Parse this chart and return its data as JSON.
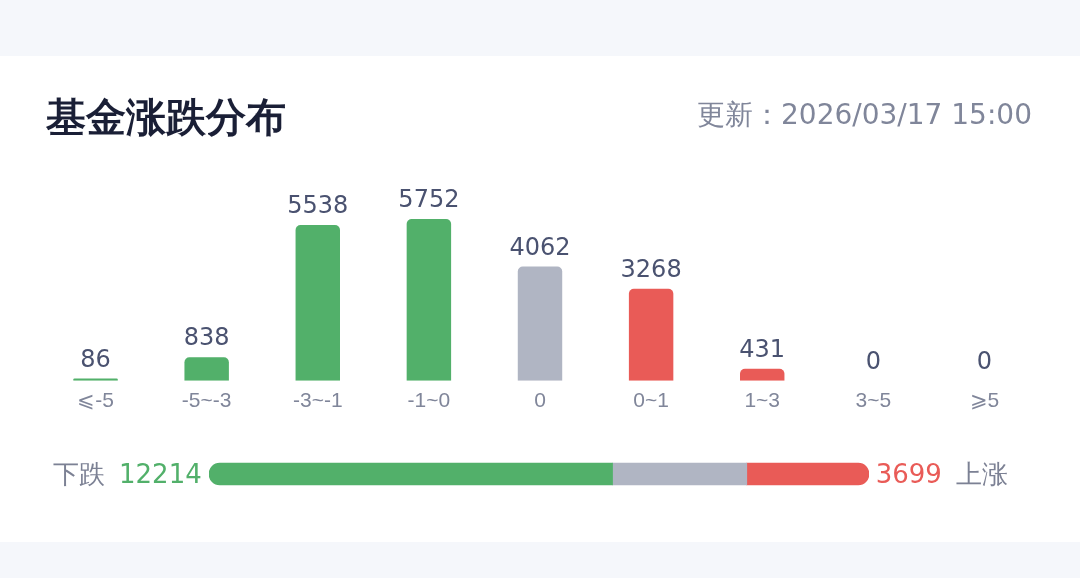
{
  "chart_data": [
    {
      "type": "bar",
      "title": "基金涨跌分布",
      "subtitle": "更新：2026/03/17 15:00",
      "categories": [
        "⩽-5",
        "-5~-3",
        "-3~-1",
        "-1~0",
        "0",
        "0~1",
        "1~3",
        "3~5",
        "⩾5"
      ],
      "values": [
        86,
        838,
        5538,
        5752,
        4062,
        3268,
        431,
        0,
        0
      ],
      "colors": [
        "#52b06a",
        "#52b06a",
        "#52b06a",
        "#52b06a",
        "#b0b5c3",
        "#e95b57",
        "#e95b57",
        "#e95b57",
        "#e95b57"
      ],
      "data_labels": true,
      "grid": false,
      "legend": false,
      "tick_labels": "x"
    },
    {
      "type": "bar",
      "orientation": "horizontal",
      "stacked": true,
      "categories": [
        null
      ],
      "series": [
        {
          "color": "#52b06a",
          "values": [
            12214
          ],
          "value_labels": [
            "12214"
          ]
        },
        {
          "color": "#b0b5c3",
          "values": [
            4062
          ],
          "value_labels": [
            null
          ]
        },
        {
          "color": "#e95b57",
          "values": [
            3699
          ],
          "value_labels": [
            "3699"
          ]
        }
      ],
      "annotations": [
        "下跌",
        "上涨"
      ],
      "legend": false,
      "grid": false,
      "tick_labels": false
    }
  ]
}
